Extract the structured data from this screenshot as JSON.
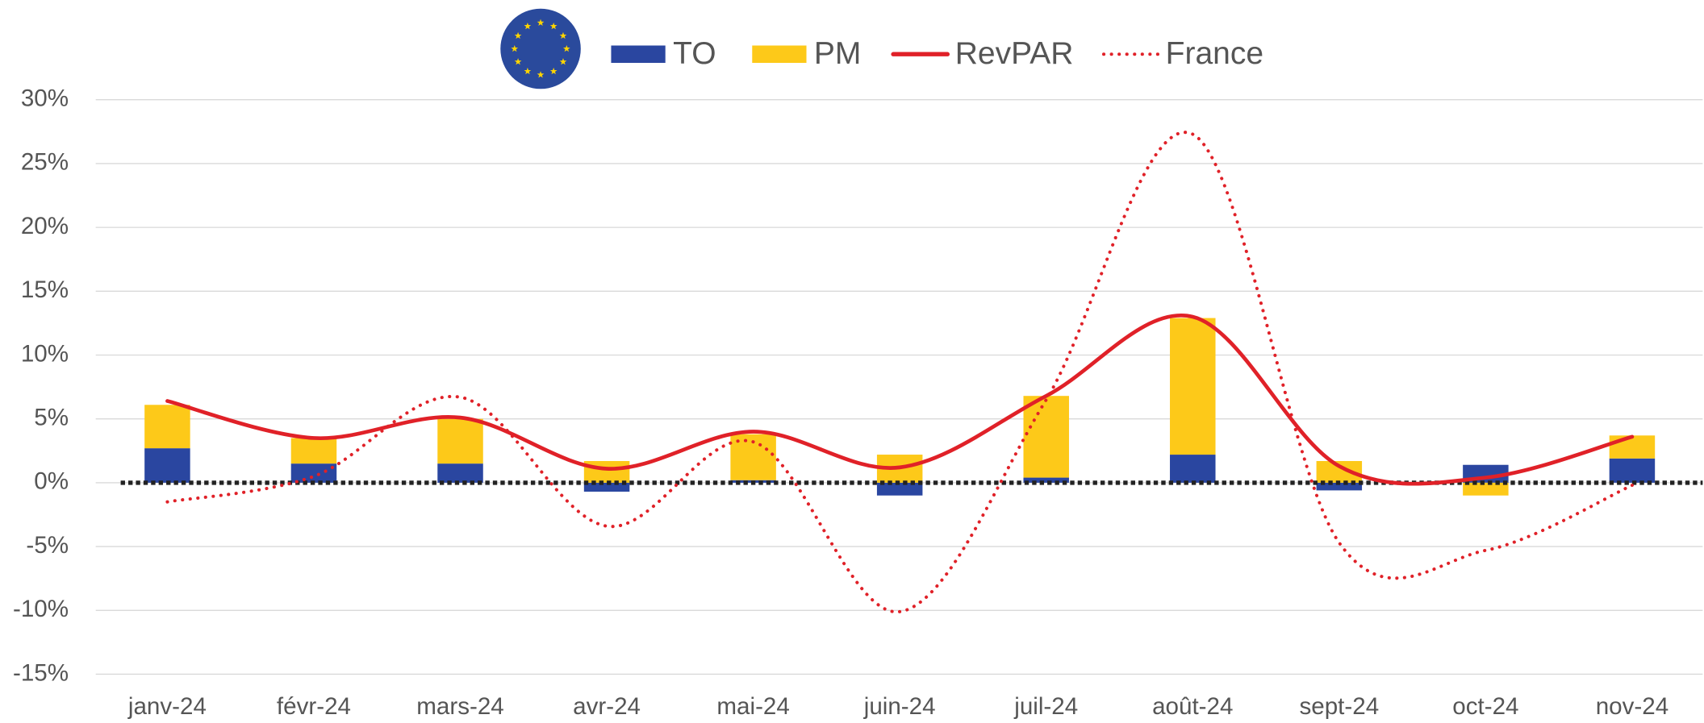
{
  "chart_data": {
    "type": "bar-line",
    "categories": [
      "janv-24",
      "févr-24",
      "mars-24",
      "avr-24",
      "mai-24",
      "juin-24",
      "juil-24",
      "août-24",
      "sept-24",
      "oct-24",
      "nov-24"
    ],
    "series": [
      {
        "name": "TO",
        "type": "bar",
        "color": "#2a46a0",
        "values": [
          2.7,
          1.5,
          1.5,
          -0.7,
          0.2,
          -1.0,
          0.4,
          2.2,
          -0.6,
          1.4,
          1.9
        ]
      },
      {
        "name": "PM",
        "type": "bar",
        "color": "#fdc919",
        "values": [
          3.4,
          2.0,
          3.5,
          1.7,
          3.6,
          2.2,
          6.4,
          10.7,
          1.7,
          -1.0,
          1.8
        ]
      },
      {
        "name": "RevPAR",
        "type": "line",
        "color": "#e02128",
        "style": "solid",
        "values": [
          6.4,
          3.5,
          5.1,
          1.1,
          4.0,
          1.2,
          6.8,
          13.0,
          1.3,
          0.4,
          3.6
        ]
      },
      {
        "name": "France",
        "type": "line",
        "color": "#e02128",
        "style": "dotted",
        "values": [
          -1.5,
          0.5,
          6.7,
          -3.4,
          3.2,
          -10.1,
          6.5,
          27.3,
          -4.7,
          -5.3,
          -0.2
        ]
      }
    ],
    "ylim": [
      -15,
      30
    ],
    "yticks": [
      {
        "value": -15,
        "label": "-15%"
      },
      {
        "value": -10,
        "label": "-10%"
      },
      {
        "value": -5,
        "label": "-5%"
      },
      {
        "value": 0,
        "label": "0%"
      },
      {
        "value": 5,
        "label": "5%"
      },
      {
        "value": 10,
        "label": "10%"
      },
      {
        "value": 15,
        "label": "15%"
      },
      {
        "value": 20,
        "label": "20%"
      },
      {
        "value": 25,
        "label": "25%"
      },
      {
        "value": 30,
        "label": "30%"
      }
    ],
    "grid": true
  }
}
